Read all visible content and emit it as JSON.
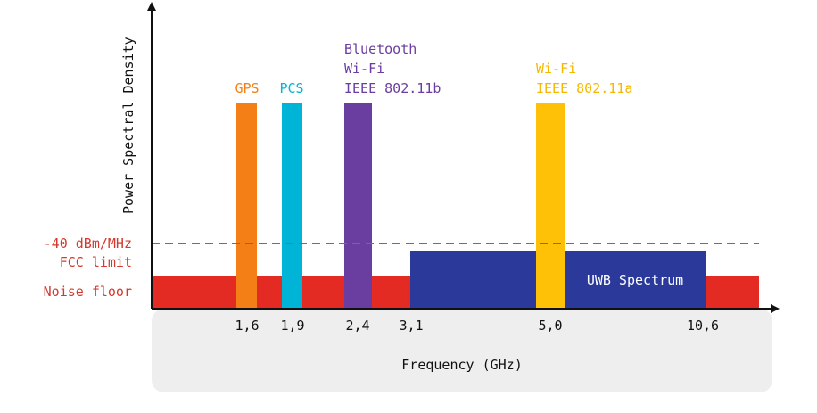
{
  "diagram": {
    "y_axis_label": "Power Spectral Density",
    "x_axis_label": "Frequency (GHz)",
    "limit_label_line1": "-40 dBm/MHz",
    "limit_label_line2": "FCC limit",
    "noise_floor_label": "Noise floor",
    "uwb_label": "UWB Spectrum",
    "tick_labels": [
      "1,6",
      "1,9",
      "2,4",
      "3,1",
      "5,0",
      "10,6"
    ],
    "bands": [
      {
        "name": "gps",
        "lines": [
          "GPS"
        ],
        "color": "#F57F17"
      },
      {
        "name": "pcs",
        "lines": [
          "PCS"
        ],
        "color": "#00B4D8"
      },
      {
        "name": "bluetooth-wifi-b",
        "lines": [
          "Bluetooth",
          "Wi-Fi",
          "IEEE 802.11b"
        ],
        "color": "#6A3DA0"
      },
      {
        "name": "wifi-a",
        "lines": [
          "Wi-Fi",
          "IEEE 802.11a"
        ],
        "color": "#FFC107"
      }
    ],
    "colors": {
      "noise_floor": "#E32A23",
      "uwb": "#2B3A9A",
      "limit_line": "#D9453C",
      "axis": "#111111",
      "panel": "#EEEEEE",
      "uwb_text": "#FFFFFF"
    }
  }
}
